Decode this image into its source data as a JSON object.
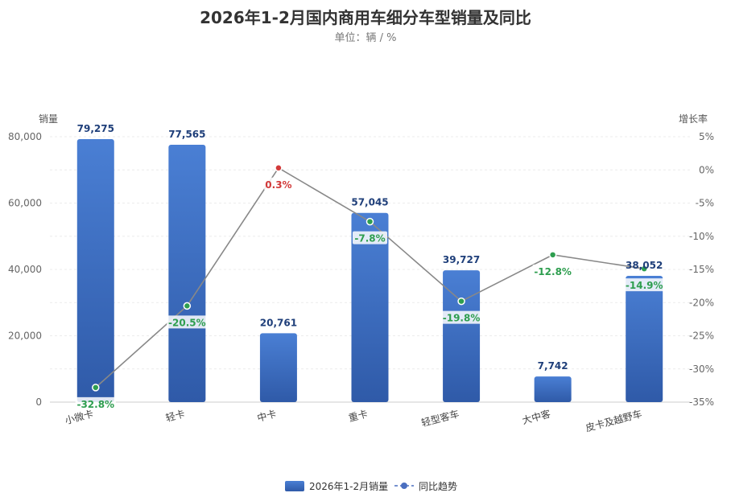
{
  "chart_data": {
    "type": "bar",
    "title": "2026年1-2月国内商用车细分车型销量及同比",
    "subtitle": "单位：辆 / %",
    "ylabel_left": "销量",
    "ylabel_right": "增长率",
    "categories": [
      "小微卡",
      "轻卡",
      "中卡",
      "重卡",
      "轻型客车",
      "大中客",
      "皮卡及越野车"
    ],
    "ylim_left": [
      0,
      80000
    ],
    "yticks_left": [
      0,
      20000,
      40000,
      60000,
      80000
    ],
    "yticks_left_labels": [
      "0",
      "20,000",
      "40,000",
      "60,000",
      "80,000"
    ],
    "ylim_right": [
      -35,
      5
    ],
    "yticks_right": [
      5,
      0,
      -5,
      -10,
      -15,
      -20,
      -25,
      -30,
      -35
    ],
    "yticks_right_labels": [
      "5%",
      "0%",
      "-5%",
      "-10%",
      "-15%",
      "-20%",
      "-25%",
      "-30%",
      "-35%"
    ],
    "grid": true,
    "legend_position": "bottom",
    "series": [
      {
        "name": "2026年1-2月销量",
        "type": "bar",
        "axis": "left",
        "values": [
          79275,
          77565,
          20761,
          57045,
          39727,
          7742,
          38052
        ],
        "labels": [
          "79,275",
          "77,565",
          "20,761",
          "57,045",
          "39,727",
          "7,742",
          "38,052"
        ],
        "color": "#3a6bc4"
      },
      {
        "name": "同比趋势",
        "type": "line",
        "axis": "right",
        "values": [
          -32.8,
          -20.5,
          0.3,
          -7.8,
          -19.8,
          -12.8,
          -14.9
        ],
        "labels": [
          "-32.8%",
          "-20.5%",
          "0.3%",
          "-7.8%",
          "-19.8%",
          "-12.8%",
          "-14.9%"
        ],
        "color": "#888888",
        "negative_color": "#2e9e4f",
        "positive_color": "#d23a3a"
      }
    ]
  }
}
